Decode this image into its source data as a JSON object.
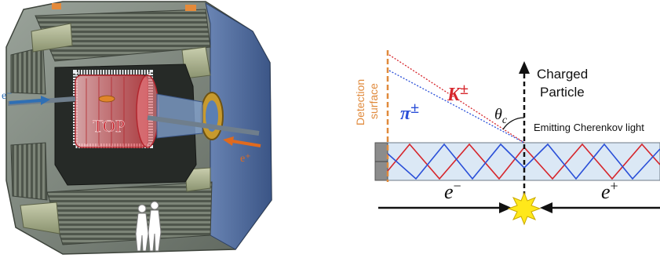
{
  "left_panel": {
    "beam_in_label": "e⁻",
    "beam_out_label": "e⁺",
    "detector_label": "TOP",
    "colors": {
      "top_red": "#c8202a",
      "beam_blue": "#2f6fb4",
      "beam_orange": "#e06a1e"
    }
  },
  "right_panel": {
    "detection_surface_line1": "Detection",
    "detection_surface_line2": "surface",
    "kaon_label": "K",
    "kaon_sup": "±",
    "pion_label": "π",
    "pion_sup": "±",
    "charged_line1": "Charged",
    "charged_line2": "Particle",
    "theta_label": "θ",
    "theta_sub": "c",
    "cherenkov_label": "Emitting Cherenkov light",
    "electron_label": "e",
    "electron_sup": "−",
    "positron_label": "e",
    "positron_sup": "+",
    "colors": {
      "kaon": "#d6262c",
      "pion": "#2a4fd8",
      "surface": "#e08a3c",
      "quartz": "#dbe8f5"
    }
  }
}
